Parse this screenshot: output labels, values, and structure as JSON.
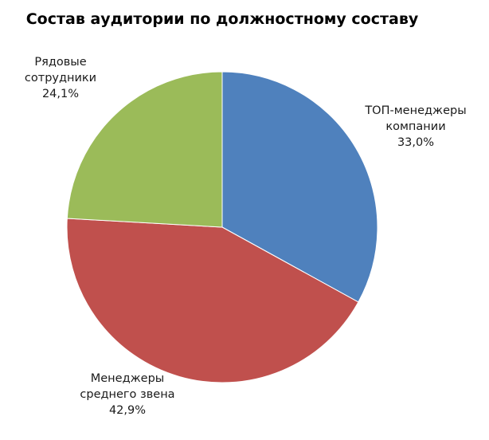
{
  "chart_data": {
    "type": "pie",
    "title": "Состав аудитории по должностному составу",
    "start_angle_deg": 0,
    "direction": "clockwise",
    "slices": [
      {
        "label_lines": [
          "ТОП-менеджеры",
          "компании"
        ],
        "value": 33.0,
        "display": "33,0%",
        "color": "#4f81bd"
      },
      {
        "label_lines": [
          "Менеджеры",
          "среднего звена"
        ],
        "value": 42.9,
        "display": "42,9%",
        "color": "#c0504d"
      },
      {
        "label_lines": [
          "Рядовые",
          "сотрудники"
        ],
        "value": 24.1,
        "display": "24,1%",
        "color": "#9bbb59"
      }
    ],
    "legend": false
  }
}
